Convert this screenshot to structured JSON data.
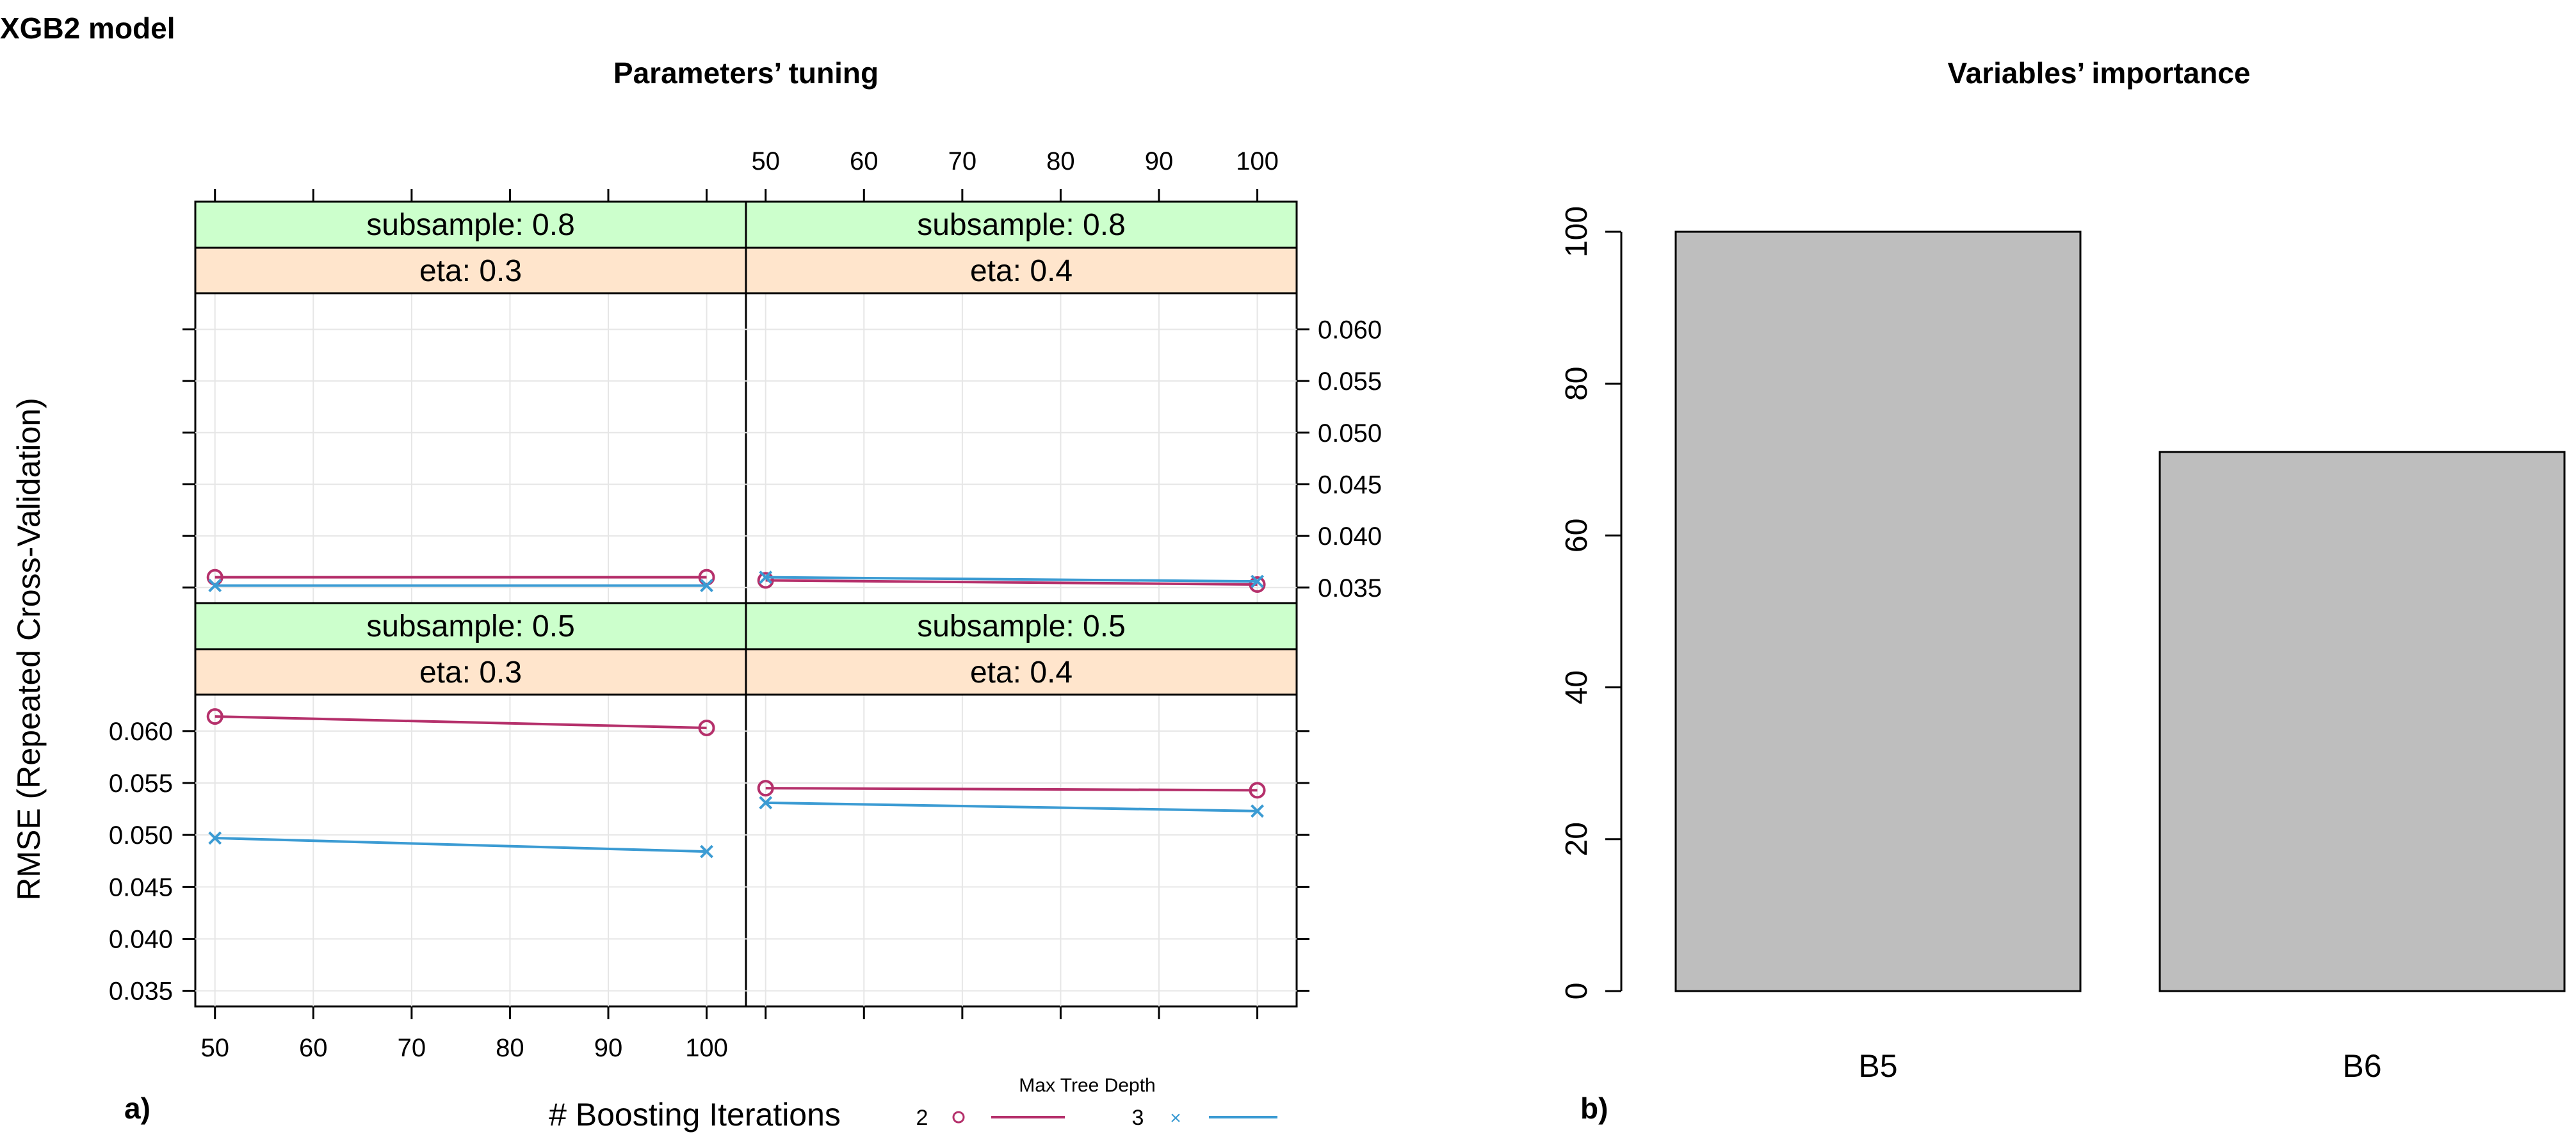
{
  "figure_title": "XGB2 model",
  "panel_a": {
    "label": "a)",
    "title": "Parameters’ tuning",
    "xlabel": "# Boosting Iterations",
    "ylabel": "RMSE (Repeated Cross-Validation)",
    "x_ticks": [
      50,
      60,
      70,
      80,
      90,
      100
    ],
    "x_ticks_text": [
      "50",
      "60",
      "70",
      "80",
      "90",
      "100"
    ],
    "xlim": [
      48,
      104
    ],
    "y_ticks": [
      0.035,
      0.04,
      0.045,
      0.05,
      0.055,
      0.06
    ],
    "y_ticks_text": [
      "0.035",
      "0.040",
      "0.045",
      "0.050",
      "0.055",
      "0.060"
    ],
    "ylim": [
      0.0335,
      0.0635
    ],
    "legend": {
      "title": "Max Tree Depth",
      "entries": [
        {
          "label": "2",
          "color": "#B5306B",
          "symbol": "o"
        },
        {
          "label": "3",
          "color": "#3B9BD3",
          "symbol": "×"
        }
      ]
    },
    "strip_colors": {
      "subsample": "#CCFFCC",
      "eta": "#FFE5CC"
    },
    "panels": [
      {
        "id": "s08-e03",
        "subsample_label": "subsample: 0.8",
        "eta_label": "eta: 0.3",
        "row": 0,
        "col": 0,
        "series": [
          {
            "depth": "2",
            "x": [
              50,
              100
            ],
            "y": [
              0.036,
              0.036
            ]
          },
          {
            "depth": "3",
            "x": [
              50,
              100
            ],
            "y": [
              0.0352,
              0.0352
            ]
          }
        ]
      },
      {
        "id": "s08-e04",
        "subsample_label": "subsample: 0.8",
        "eta_label": "eta: 0.4",
        "row": 0,
        "col": 1,
        "series": [
          {
            "depth": "2",
            "x": [
              50,
              100
            ],
            "y": [
              0.0357,
              0.0353
            ]
          },
          {
            "depth": "3",
            "x": [
              50,
              100
            ],
            "y": [
              0.036,
              0.0356
            ]
          }
        ]
      },
      {
        "id": "s05-e03",
        "subsample_label": "subsample: 0.5",
        "eta_label": "eta: 0.3",
        "row": 1,
        "col": 0,
        "series": [
          {
            "depth": "2",
            "x": [
              50,
              100
            ],
            "y": [
              0.0614,
              0.0603
            ]
          },
          {
            "depth": "3",
            "x": [
              50,
              100
            ],
            "y": [
              0.0497,
              0.0484
            ]
          }
        ]
      },
      {
        "id": "s05-e04",
        "subsample_label": "subsample: 0.5",
        "eta_label": "eta: 0.4",
        "row": 1,
        "col": 1,
        "series": [
          {
            "depth": "2",
            "x": [
              50,
              100
            ],
            "y": [
              0.0545,
              0.0543
            ]
          },
          {
            "depth": "3",
            "x": [
              50,
              100
            ],
            "y": [
              0.0531,
              0.0523
            ]
          }
        ]
      }
    ]
  },
  "chart_data": {
    "type": "bar",
    "title": "Variables’ importance",
    "panel_label": "b)",
    "categories": [
      "B5",
      "B6"
    ],
    "values": [
      100,
      71
    ],
    "ylim": [
      0,
      100
    ],
    "y_ticks": [
      0,
      20,
      40,
      60,
      80,
      100
    ],
    "y_ticks_text": [
      "0",
      "20",
      "40",
      "60",
      "80",
      "100"
    ],
    "xlabel": "",
    "ylabel": "",
    "bar_color": "#BEBEBE"
  }
}
